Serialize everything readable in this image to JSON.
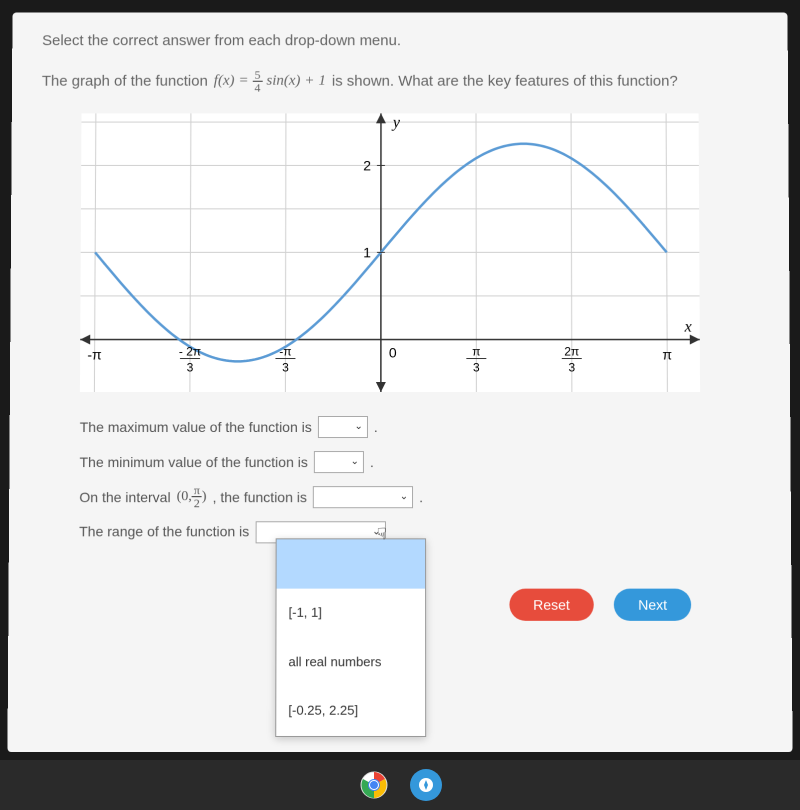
{
  "instruction": "Select the correct answer from each drop-down menu.",
  "question": {
    "prefix": "The graph of the function",
    "func_lhs": "f(x)",
    "equals": "=",
    "frac_num": "5",
    "frac_den": "4",
    "func_mid": "sin(x)",
    "plus": "+",
    "constant": "1",
    "suffix": "is shown. What are the key features of this function?"
  },
  "graph": {
    "axis_labels": {
      "x": "x",
      "y": "y"
    },
    "y_ticks": [
      {
        "label": "2",
        "value": 2
      },
      {
        "label": "1",
        "value": 1
      }
    ],
    "x_ticks": [
      {
        "label_top": "-π",
        "label_bottom": "",
        "value": -3.1416
      },
      {
        "label_top": "- 2π",
        "label_bottom": "3",
        "value": -2.0944
      },
      {
        "label_top": "-π",
        "label_bottom": "3",
        "value": -1.0472
      },
      {
        "label_top": "0",
        "label_bottom": "",
        "value": 0
      },
      {
        "label_top": "π",
        "label_bottom": "3",
        "value": 1.0472
      },
      {
        "label_top": "2π",
        "label_bottom": "3",
        "value": 2.0944
      },
      {
        "label_top": "π",
        "label_bottom": "",
        "value": 3.1416
      }
    ],
    "curve_color": "#5b9bd5",
    "grid_color": "#d0d0d0",
    "axis_color": "#333333",
    "x_range": [
      -3.3,
      3.5
    ],
    "y_range": [
      -0.6,
      2.6
    ],
    "amplitude": 1.25,
    "vshift": 1
  },
  "statements": {
    "s1": "The maximum value of the function is",
    "s2": "The minimum value of the function is",
    "s3_prefix": "On the interval",
    "s3_interval_open": "(0,",
    "s3_frac_num": "π",
    "s3_frac_den": "2",
    "s3_interval_close": ")",
    "s3_suffix": ", the function is",
    "s4": "The range of the function is"
  },
  "dropdown_options": [
    {
      "label": "",
      "highlighted": true
    },
    {
      "label": "[-1, 1]",
      "highlighted": false
    },
    {
      "label": "all real numbers",
      "highlighted": false
    },
    {
      "label": "[-0.25, 2.25]",
      "highlighted": false
    }
  ],
  "buttons": {
    "reset": "Reset",
    "next": "Next"
  },
  "colors": {
    "reset_bg": "#e74c3c",
    "next_bg": "#3498db"
  }
}
